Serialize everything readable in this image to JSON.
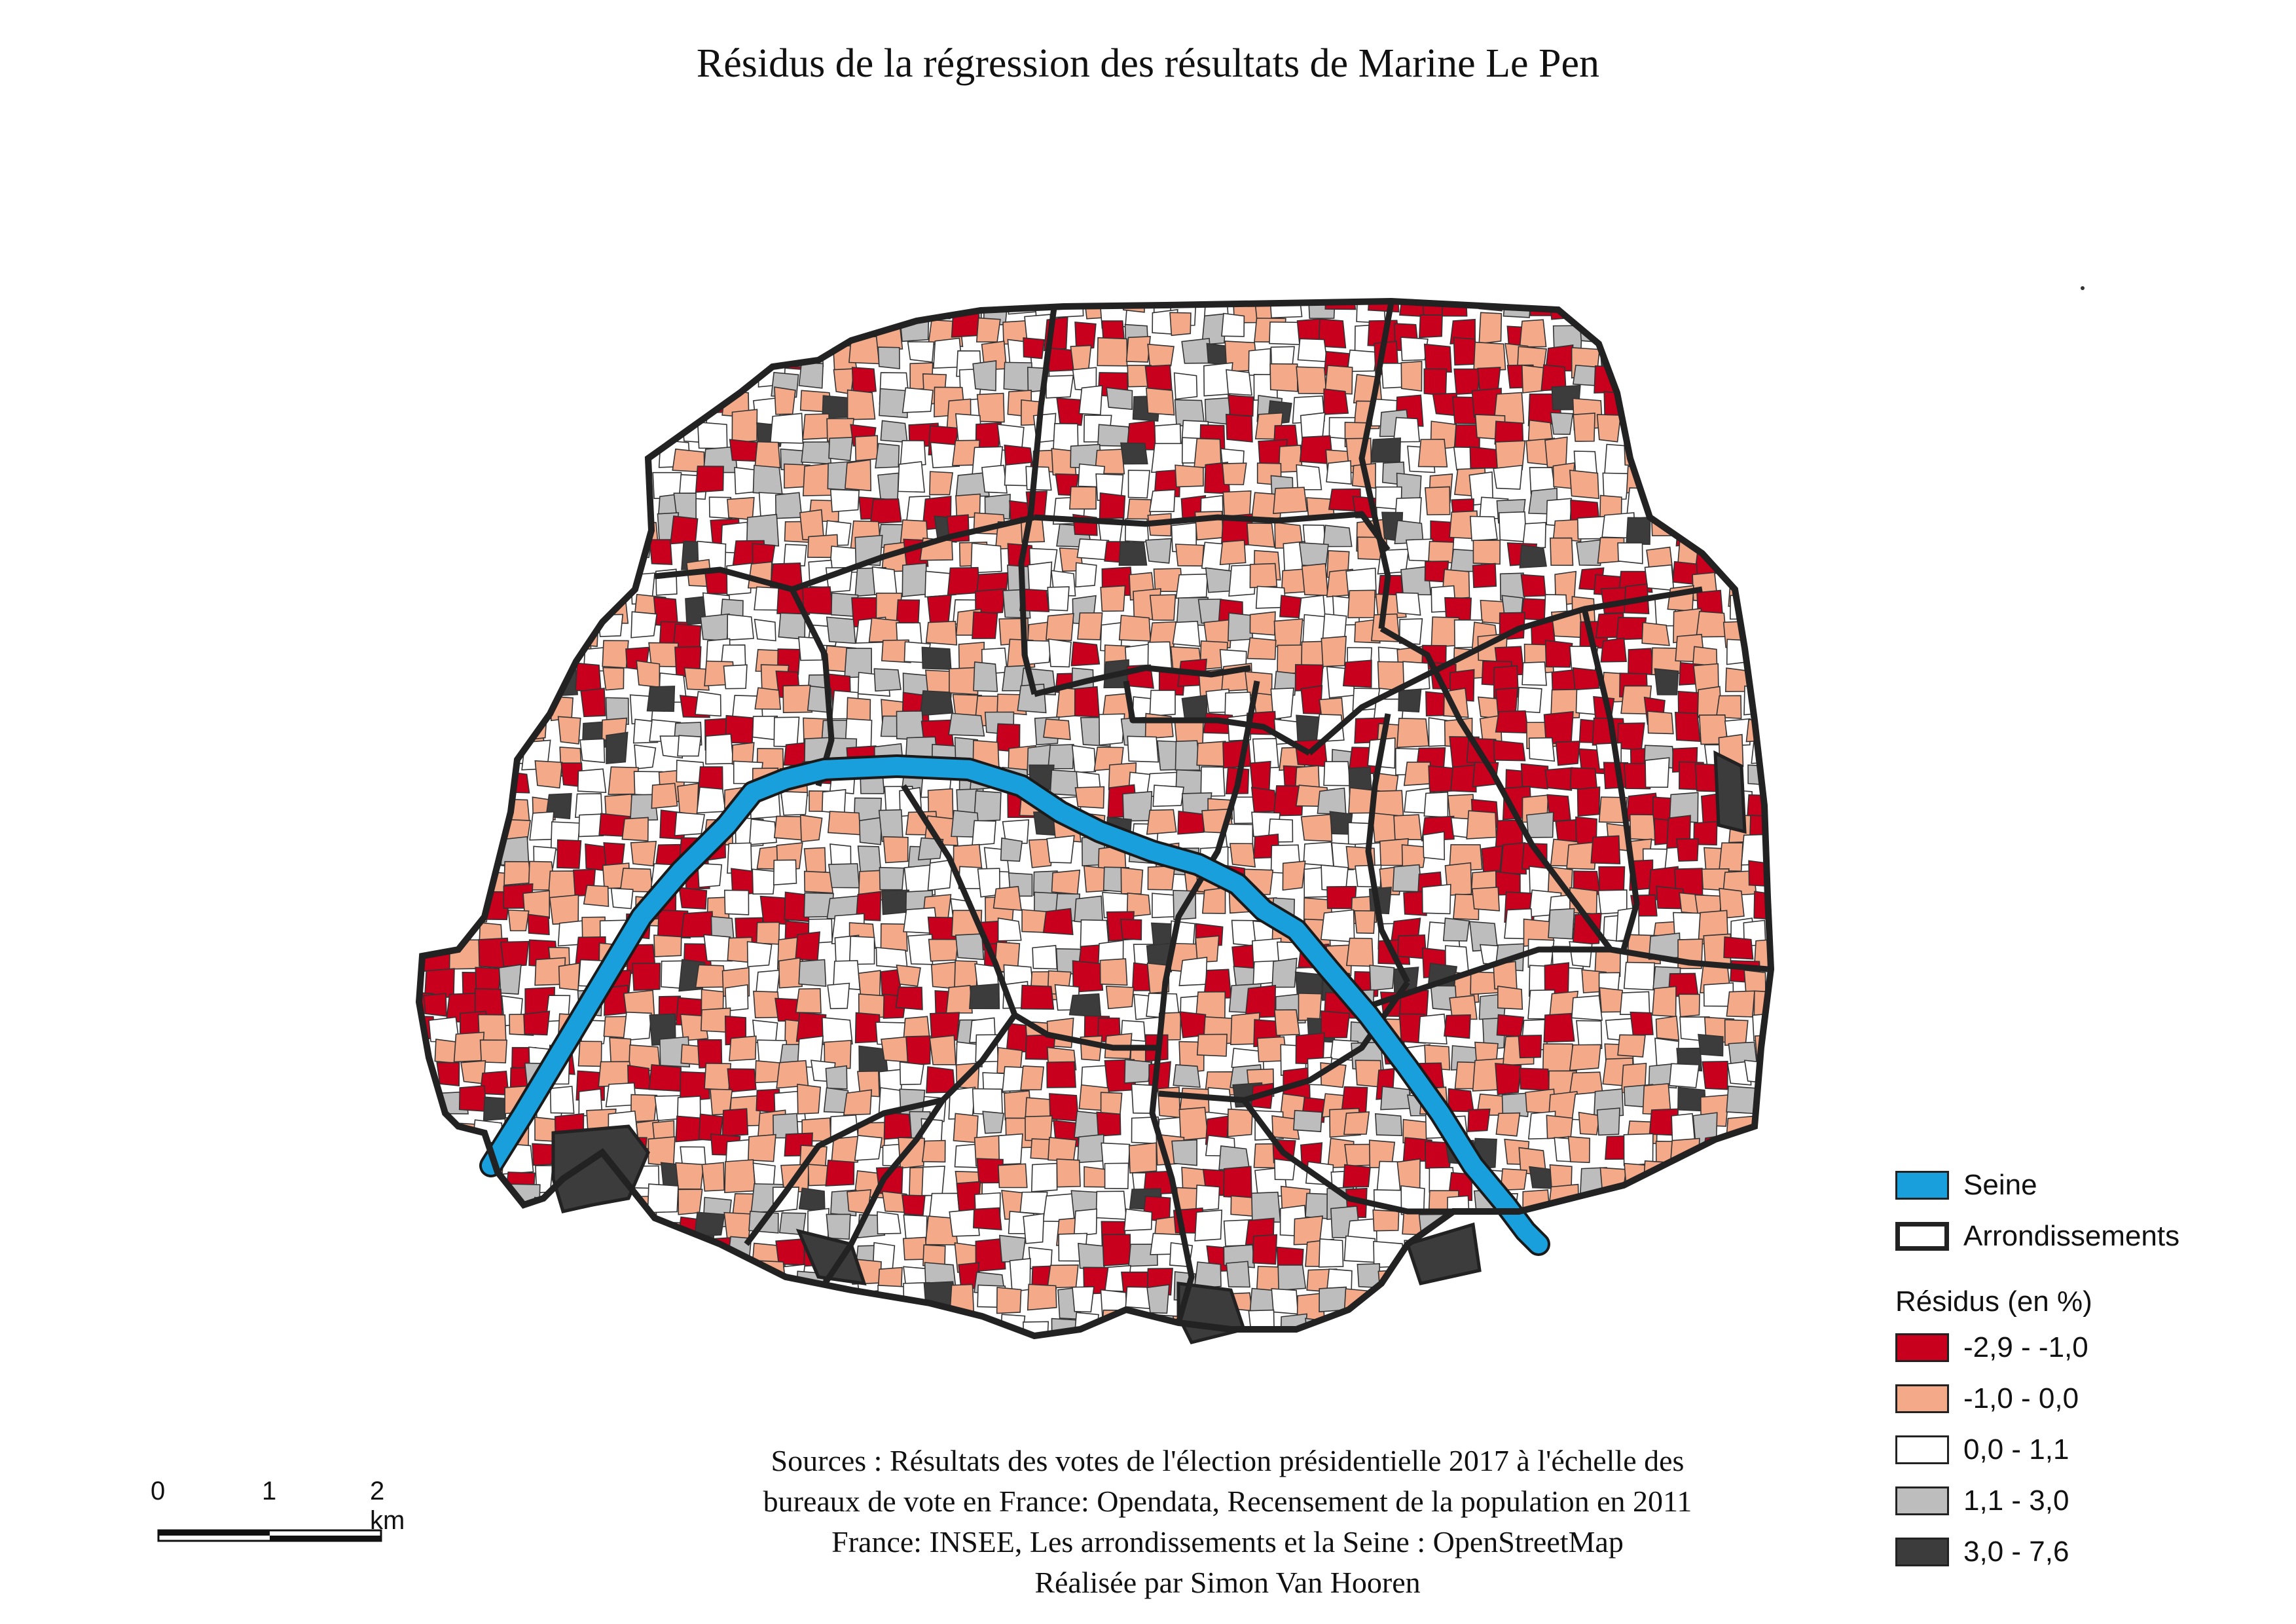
{
  "title": "Résidus de la régression des résultats de Marine Le Pen",
  "colors": {
    "class1": "#c8001e",
    "class2": "#f4a989",
    "class3": "#ffffff",
    "class4": "#bdbdbd",
    "class5": "#3c3c3c",
    "seine": "#19a0dc",
    "boundary": "#222222"
  },
  "legend": {
    "seine_label": "Seine",
    "arrondissements_label": "Arrondissements",
    "classes_title": "Résidus (en %)",
    "classes": [
      {
        "label": "-2,9 - -1,0",
        "color": "#c8001e"
      },
      {
        "label": "-1,0 - 0,0",
        "color": "#f4a989"
      },
      {
        "label": "0,0 - 1,1",
        "color": "#ffffff"
      },
      {
        "label": "1,1 - 3,0",
        "color": "#bdbdbd"
      },
      {
        "label": "3,0 - 7,6",
        "color": "#3c3c3c"
      }
    ]
  },
  "scale": {
    "labels": [
      "0",
      "1",
      "2 km"
    ]
  },
  "sources": {
    "lines": [
      "Sources : Résultats des votes de l'élection présidentielle 2017 à l'échelle des",
      "bureaux de vote en France: Opendata, Recensement de la population en 2011",
      "France: INSEE, Les arrondissements et la Seine : OpenStreetMap",
      "Réalisée par Simon Van Hooren"
    ]
  }
}
